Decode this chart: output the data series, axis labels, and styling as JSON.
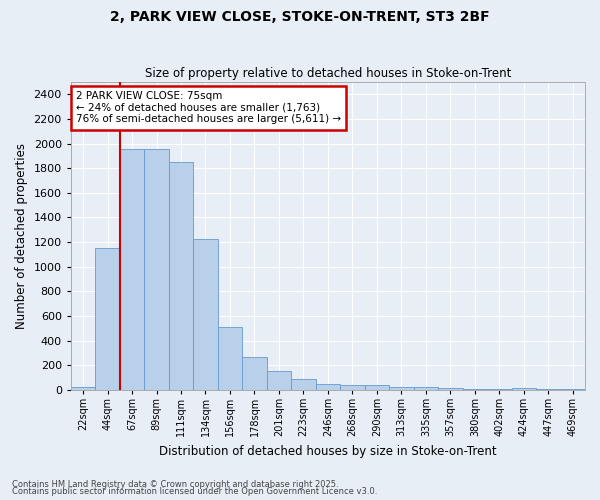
{
  "title1": "2, PARK VIEW CLOSE, STOKE-ON-TRENT, ST3 2BF",
  "title2": "Size of property relative to detached houses in Stoke-on-Trent",
  "xlabel": "Distribution of detached houses by size in Stoke-on-Trent",
  "ylabel": "Number of detached properties",
  "categories": [
    "22sqm",
    "44sqm",
    "67sqm",
    "89sqm",
    "111sqm",
    "134sqm",
    "156sqm",
    "178sqm",
    "201sqm",
    "223sqm",
    "246sqm",
    "268sqm",
    "290sqm",
    "313sqm",
    "335sqm",
    "357sqm",
    "380sqm",
    "402sqm",
    "424sqm",
    "447sqm",
    "469sqm"
  ],
  "values": [
    25,
    1155,
    1960,
    1960,
    1850,
    1225,
    510,
    270,
    155,
    90,
    50,
    42,
    42,
    22,
    22,
    18,
    5,
    5,
    15,
    5,
    5
  ],
  "bar_color": "#b8d0ea",
  "bar_edge_color": "#6699cc",
  "bg_color": "#e8eef6",
  "grid_color": "#ffffff",
  "annotation_line1": "2 PARK VIEW CLOSE: 75sqm",
  "annotation_line2": "← 24% of detached houses are smaller (1,763)",
  "annotation_line3": "76% of semi-detached houses are larger (5,611) →",
  "vline_color": "#cc0000",
  "annotation_box_edgecolor": "#cc0000",
  "ylim": [
    0,
    2500
  ],
  "yticks": [
    0,
    200,
    400,
    600,
    800,
    1000,
    1200,
    1400,
    1600,
    1800,
    2000,
    2200,
    2400
  ],
  "vline_x_index": 2,
  "footer1": "Contains HM Land Registry data © Crown copyright and database right 2025.",
  "footer2": "Contains public sector information licensed under the Open Government Licence v3.0.",
  "figsize": [
    6.0,
    5.0
  ],
  "dpi": 100
}
